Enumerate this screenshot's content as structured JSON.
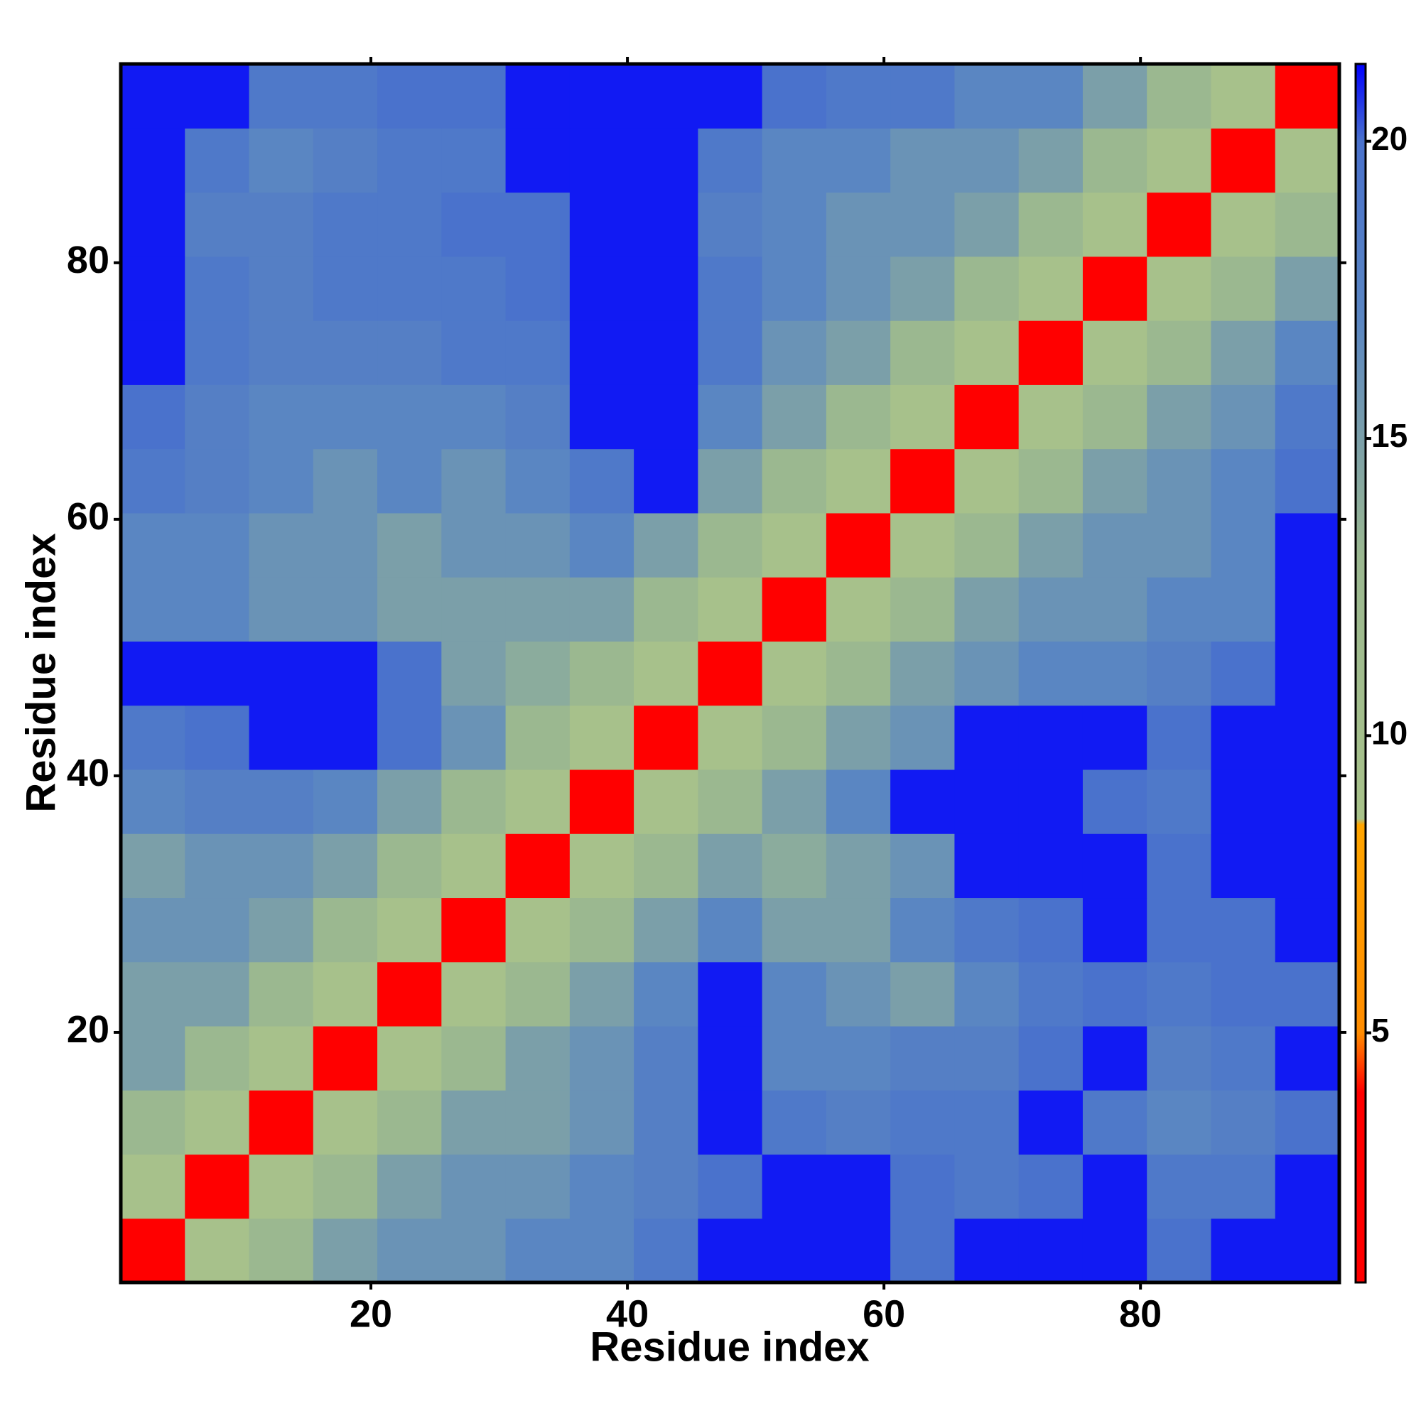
{
  "chart_data": {
    "type": "heatmap",
    "x_label": "Residue index",
    "y_label": "Residue index",
    "x": [
      3,
      8,
      13,
      18,
      23,
      28,
      33,
      38,
      43,
      48,
      53,
      58,
      63,
      68,
      73,
      78,
      83,
      88,
      93
    ],
    "y": [
      3,
      8,
      13,
      18,
      23,
      28,
      33,
      38,
      43,
      48,
      53,
      58,
      63,
      68,
      73,
      78,
      83,
      88,
      93
    ],
    "z": [
      [
        3,
        9,
        13,
        15,
        16,
        16,
        17,
        17,
        19,
        21,
        21,
        21,
        20,
        21,
        21,
        21,
        20,
        21,
        21
      ],
      [
        9,
        3,
        9,
        13,
        15,
        16,
        16,
        17,
        18,
        20,
        21,
        21,
        20,
        19,
        20,
        21,
        19,
        19,
        21
      ],
      [
        13,
        9,
        3,
        9,
        13,
        15,
        15,
        16,
        18,
        21,
        19,
        18,
        19,
        19,
        21,
        19,
        17,
        18,
        20
      ],
      [
        15,
        13,
        9,
        3,
        9,
        13,
        15,
        16,
        18,
        21,
        17,
        17,
        18,
        18,
        20,
        21,
        18,
        19,
        21
      ],
      [
        15,
        15,
        13,
        9,
        3,
        9,
        13,
        15,
        17,
        21,
        17,
        16,
        15,
        17,
        19,
        20,
        19,
        20,
        20
      ],
      [
        16,
        16,
        15,
        13,
        9,
        3,
        9,
        13,
        15,
        17,
        15,
        15,
        17,
        19,
        20,
        21,
        20,
        20,
        21
      ],
      [
        15,
        16,
        16,
        15,
        13,
        9,
        3,
        9,
        13,
        15,
        14,
        15,
        16,
        21,
        21,
        21,
        20,
        21,
        21
      ],
      [
        17,
        18,
        18,
        17,
        15,
        13,
        9,
        3,
        9,
        13,
        15,
        17,
        21,
        21,
        21,
        20,
        19,
        21,
        21
      ],
      [
        19,
        20,
        21,
        21,
        20,
        16,
        13,
        9,
        3,
        9,
        13,
        15,
        16,
        21,
        21,
        21,
        20,
        21,
        21
      ],
      [
        21,
        21,
        21,
        21,
        20,
        15,
        14,
        13,
        9,
        3,
        9,
        13,
        15,
        16,
        17,
        17,
        18,
        20,
        21
      ],
      [
        17,
        17,
        16,
        16,
        15,
        15,
        15,
        15,
        13,
        9,
        3,
        9,
        13,
        15,
        16,
        16,
        17,
        17,
        21
      ],
      [
        17,
        17,
        16,
        16,
        15,
        16,
        16,
        17,
        15,
        13,
        9,
        3,
        9,
        13,
        15,
        16,
        16,
        17,
        21
      ],
      [
        19,
        18,
        17,
        16,
        17,
        16,
        17,
        19,
        21,
        15,
        13,
        9,
        3,
        9,
        13,
        15,
        16,
        17,
        20
      ],
      [
        20,
        18,
        17,
        17,
        17,
        17,
        18,
        21,
        21,
        17,
        15,
        13,
        9,
        3,
        9,
        13,
        15,
        16,
        19
      ],
      [
        21,
        19,
        18,
        18,
        18,
        19,
        19,
        21,
        21,
        19,
        16,
        15,
        13,
        9,
        3,
        9,
        13,
        15,
        17
      ],
      [
        21,
        19,
        18,
        19,
        19,
        19,
        20,
        21,
        21,
        19,
        17,
        16,
        15,
        13,
        9,
        3,
        9,
        13,
        15
      ],
      [
        21,
        18,
        18,
        19,
        19,
        20,
        20,
        21,
        21,
        18,
        17,
        16,
        16,
        15,
        13,
        9,
        3,
        9,
        13
      ],
      [
        21,
        19,
        17,
        18,
        19,
        19,
        21,
        21,
        21,
        19,
        17,
        17,
        16,
        16,
        15,
        13,
        9,
        3,
        9
      ],
      [
        21,
        21,
        19,
        19,
        20,
        20,
        21,
        21,
        21,
        21,
        20,
        19,
        19,
        17,
        17,
        15,
        13,
        9,
        3
      ]
    ],
    "xlim": [
      0.5,
      95.5
    ],
    "ylim": [
      0.5,
      95.5
    ],
    "xticks": [
      20,
      40,
      60,
      80
    ],
    "yticks": [
      20,
      40,
      60,
      80
    ],
    "zlim": [
      0.8,
      21.3
    ],
    "zticks": [
      5,
      10,
      15,
      20
    ],
    "colorscale": [
      [
        0.8,
        "#ff0000"
      ],
      [
        4,
        "#ff0000"
      ],
      [
        5,
        "#ff8c00"
      ],
      [
        8.5,
        "#ffa500"
      ],
      [
        8.6,
        "#a8c28a"
      ],
      [
        13,
        "#9bb890"
      ],
      [
        17,
        "#5a86c2"
      ],
      [
        20,
        "#4a72cc"
      ],
      [
        21.3,
        "#0000ff"
      ]
    ]
  }
}
